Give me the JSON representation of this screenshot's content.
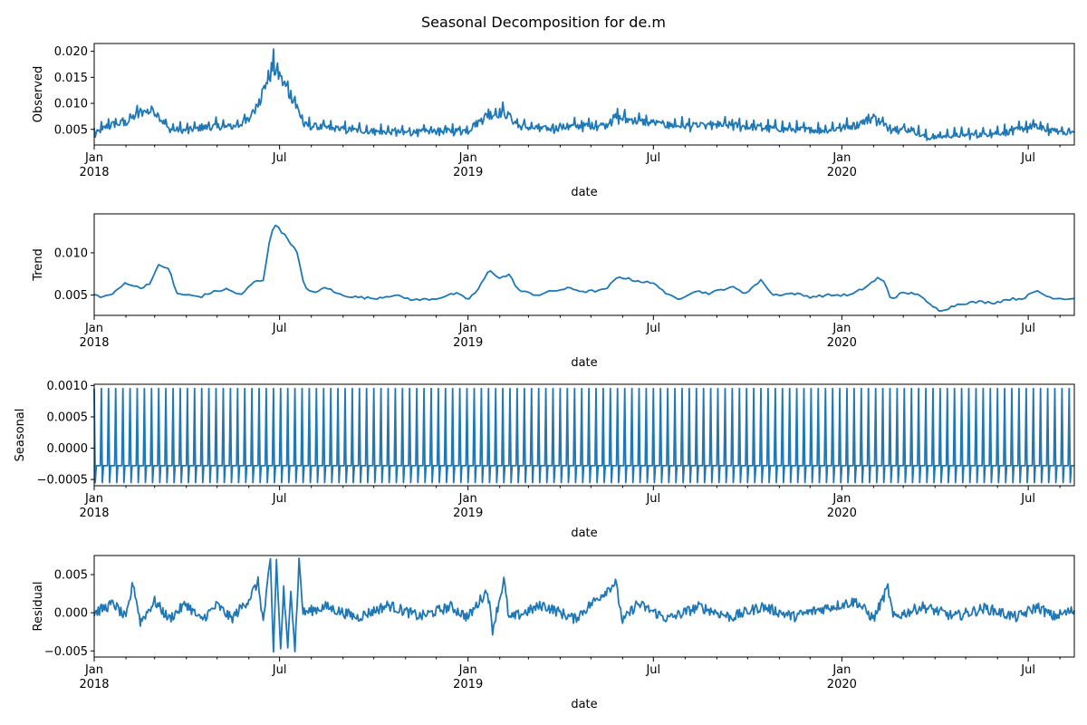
{
  "chart_data": {
    "type": "line",
    "title": "Seasonal Decomposition for de.m",
    "x_range": [
      "2018-01-01",
      "2020-08-15"
    ],
    "x_ticks": [
      {
        "date": "2018-01-01",
        "label": "Jan",
        "label2": "2018"
      },
      {
        "date": "2018-07-01",
        "label": "Jul",
        "label2": ""
      },
      {
        "date": "2019-01-01",
        "label": "Jan",
        "label2": "2019"
      },
      {
        "date": "2019-07-01",
        "label": "Jul",
        "label2": ""
      },
      {
        "date": "2020-01-01",
        "label": "Jan",
        "label2": "2020"
      },
      {
        "date": "2020-07-01",
        "label": "Jul",
        "label2": ""
      }
    ],
    "xlabel": "date",
    "grid": false,
    "panels": [
      {
        "name": "observed",
        "ylabel": "Observed",
        "ylim": [
          0.002,
          0.0215
        ],
        "y_ticks": [
          0.005,
          0.01,
          0.015,
          0.02
        ],
        "y_tick_labels": [
          "0.005",
          "0.010",
          "0.015",
          "0.020"
        ],
        "points": [
          [
            "2018-01-01",
            0.0042
          ],
          [
            "2018-01-15",
            0.006
          ],
          [
            "2018-02-01",
            0.0065
          ],
          [
            "2018-02-15",
            0.0085
          ],
          [
            "2018-03-01",
            0.0088
          ],
          [
            "2018-03-15",
            0.0052
          ],
          [
            "2018-04-01",
            0.005
          ],
          [
            "2018-04-15",
            0.0055
          ],
          [
            "2018-05-01",
            0.0058
          ],
          [
            "2018-05-15",
            0.0056
          ],
          [
            "2018-06-01",
            0.007
          ],
          [
            "2018-06-15",
            0.0125
          ],
          [
            "2018-06-25",
            0.0175
          ],
          [
            "2018-07-05",
            0.014
          ],
          [
            "2018-07-15",
            0.011
          ],
          [
            "2018-07-25",
            0.006
          ],
          [
            "2018-08-15",
            0.0055
          ],
          [
            "2018-09-01",
            0.0052
          ],
          [
            "2018-10-01",
            0.0048
          ],
          [
            "2018-11-01",
            0.0046
          ],
          [
            "2018-12-01",
            0.0048
          ],
          [
            "2019-01-01",
            0.005
          ],
          [
            "2019-01-20",
            0.008
          ],
          [
            "2019-02-05",
            0.0085
          ],
          [
            "2019-02-20",
            0.0058
          ],
          [
            "2019-03-15",
            0.0052
          ],
          [
            "2019-04-15",
            0.0058
          ],
          [
            "2019-05-15",
            0.006
          ],
          [
            "2019-05-25",
            0.0075
          ],
          [
            "2019-06-15",
            0.0068
          ],
          [
            "2019-07-15",
            0.006
          ],
          [
            "2019-08-15",
            0.0058
          ],
          [
            "2019-09-15",
            0.006
          ],
          [
            "2019-10-15",
            0.0055
          ],
          [
            "2019-11-15",
            0.0052
          ],
          [
            "2019-12-15",
            0.005
          ],
          [
            "2020-01-15",
            0.006
          ],
          [
            "2020-02-01",
            0.0075
          ],
          [
            "2020-02-15",
            0.0055
          ],
          [
            "2020-03-10",
            0.005
          ],
          [
            "2020-03-25",
            0.0035
          ],
          [
            "2020-04-15",
            0.004
          ],
          [
            "2020-05-15",
            0.0042
          ],
          [
            "2020-06-15",
            0.0048
          ],
          [
            "2020-07-05",
            0.0058
          ],
          [
            "2020-07-25",
            0.0048
          ],
          [
            "2020-08-15",
            0.0046
          ]
        ]
      },
      {
        "name": "trend",
        "ylabel": "Trend",
        "ylim": [
          0.0026,
          0.0146
        ],
        "y_ticks": [
          0.005,
          0.01
        ],
        "y_tick_labels": [
          "0.005",
          "0.010"
        ],
        "points": [
          [
            "2018-01-01",
            0.005
          ],
          [
            "2018-01-10",
            0.0048
          ],
          [
            "2018-01-20",
            0.0052
          ],
          [
            "2018-02-01",
            0.0065
          ],
          [
            "2018-02-15",
            0.0058
          ],
          [
            "2018-02-25",
            0.0065
          ],
          [
            "2018-03-05",
            0.0085
          ],
          [
            "2018-03-15",
            0.0082
          ],
          [
            "2018-03-22",
            0.0052
          ],
          [
            "2018-04-01",
            0.005
          ],
          [
            "2018-04-15",
            0.0048
          ],
          [
            "2018-04-25",
            0.0053
          ],
          [
            "2018-05-10",
            0.0057
          ],
          [
            "2018-05-25",
            0.005
          ],
          [
            "2018-06-05",
            0.0065
          ],
          [
            "2018-06-15",
            0.0068
          ],
          [
            "2018-06-22",
            0.012
          ],
          [
            "2018-06-28",
            0.0135
          ],
          [
            "2018-07-03",
            0.0125
          ],
          [
            "2018-07-10",
            0.0115
          ],
          [
            "2018-07-18",
            0.01
          ],
          [
            "2018-07-25",
            0.006
          ],
          [
            "2018-08-05",
            0.0052
          ],
          [
            "2018-08-15",
            0.006
          ],
          [
            "2018-08-25",
            0.0052
          ],
          [
            "2018-09-10",
            0.0048
          ],
          [
            "2018-10-01",
            0.0046
          ],
          [
            "2018-10-20",
            0.005
          ],
          [
            "2018-11-10",
            0.0044
          ],
          [
            "2018-12-01",
            0.0046
          ],
          [
            "2018-12-20",
            0.0052
          ],
          [
            "2019-01-01",
            0.0045
          ],
          [
            "2019-01-10",
            0.0055
          ],
          [
            "2019-01-22",
            0.008
          ],
          [
            "2019-02-01",
            0.007
          ],
          [
            "2019-02-10",
            0.0074
          ],
          [
            "2019-02-20",
            0.0055
          ],
          [
            "2019-03-10",
            0.005
          ],
          [
            "2019-03-25",
            0.0055
          ],
          [
            "2019-04-10",
            0.0058
          ],
          [
            "2019-04-25",
            0.0054
          ],
          [
            "2019-05-15",
            0.0056
          ],
          [
            "2019-05-28",
            0.0072
          ],
          [
            "2019-06-10",
            0.0068
          ],
          [
            "2019-06-25",
            0.0065
          ],
          [
            "2019-07-05",
            0.0062
          ],
          [
            "2019-07-15",
            0.005
          ],
          [
            "2019-07-25",
            0.0045
          ],
          [
            "2019-08-10",
            0.0055
          ],
          [
            "2019-08-25",
            0.0052
          ],
          [
            "2019-09-15",
            0.006
          ],
          [
            "2019-09-28",
            0.0052
          ],
          [
            "2019-10-15",
            0.0068
          ],
          [
            "2019-10-25",
            0.005
          ],
          [
            "2019-11-15",
            0.0052
          ],
          [
            "2019-12-01",
            0.0048
          ],
          [
            "2019-12-20",
            0.005
          ],
          [
            "2020-01-10",
            0.005
          ],
          [
            "2020-01-25",
            0.006
          ],
          [
            "2020-02-05",
            0.007
          ],
          [
            "2020-02-12",
            0.0065
          ],
          [
            "2020-02-18",
            0.0045
          ],
          [
            "2020-02-28",
            0.0052
          ],
          [
            "2020-03-15",
            0.0052
          ],
          [
            "2020-03-25",
            0.004
          ],
          [
            "2020-04-05",
            0.0032
          ],
          [
            "2020-04-15",
            0.0035
          ],
          [
            "2020-04-25",
            0.004
          ],
          [
            "2020-05-15",
            0.0042
          ],
          [
            "2020-05-30",
            0.0041
          ],
          [
            "2020-06-10",
            0.0045
          ],
          [
            "2020-06-25",
            0.0046
          ],
          [
            "2020-07-10",
            0.0055
          ],
          [
            "2020-07-20",
            0.0048
          ],
          [
            "2020-08-01",
            0.0046
          ],
          [
            "2020-08-15",
            0.0046
          ]
        ]
      },
      {
        "name": "seasonal",
        "ylabel": "Seasonal",
        "ylim": [
          -0.0006,
          0.00102
        ],
        "y_ticks": [
          -0.0005,
          0.0,
          0.0005,
          0.001
        ],
        "y_tick_labels": [
          "−0.0005",
          "0.0000",
          "0.0005",
          "0.0010"
        ],
        "period_days": 7,
        "weekly_pattern": [
          0.00095,
          -0.00055,
          -0.00028,
          -0.00028,
          -0.00028,
          -0.00028,
          -0.00028
        ],
        "points": []
      },
      {
        "name": "residual",
        "ylabel": "Residual",
        "ylim": [
          -0.0058,
          0.0075
        ],
        "y_ticks": [
          -0.005,
          0.0,
          0.005
        ],
        "y_tick_labels": [
          "−0.005",
          "0.000",
          "0.005"
        ],
        "points": [
          [
            "2018-01-01",
            0.0
          ],
          [
            "2018-01-20",
            0.0012
          ],
          [
            "2018-02-01",
            -0.0008
          ],
          [
            "2018-02-08",
            0.004
          ],
          [
            "2018-02-15",
            -0.0012
          ],
          [
            "2018-03-01",
            0.0015
          ],
          [
            "2018-03-15",
            -0.0008
          ],
          [
            "2018-04-01",
            0.0012
          ],
          [
            "2018-04-15",
            -0.001
          ],
          [
            "2018-05-01",
            0.001
          ],
          [
            "2018-05-15",
            -0.0008
          ],
          [
            "2018-06-01",
            0.0018
          ],
          [
            "2018-06-10",
            0.004
          ],
          [
            "2018-06-15",
            -0.0012
          ],
          [
            "2018-06-22",
            0.0068
          ],
          [
            "2018-06-25",
            -0.005
          ],
          [
            "2018-06-28",
            0.0068
          ],
          [
            "2018-07-02",
            -0.0048
          ],
          [
            "2018-07-05",
            0.003
          ],
          [
            "2018-07-09",
            -0.005
          ],
          [
            "2018-07-12",
            0.0035
          ],
          [
            "2018-07-16",
            -0.0048
          ],
          [
            "2018-07-20",
            0.0068
          ],
          [
            "2018-07-24",
            0.0
          ],
          [
            "2018-08-15",
            0.0008
          ],
          [
            "2018-09-15",
            -0.0006
          ],
          [
            "2018-10-15",
            0.001
          ],
          [
            "2018-11-15",
            -0.0005
          ],
          [
            "2018-12-15",
            0.0008
          ],
          [
            "2019-01-01",
            -0.0006
          ],
          [
            "2019-01-20",
            0.003
          ],
          [
            "2019-01-25",
            -0.0022
          ],
          [
            "2019-02-05",
            0.0043
          ],
          [
            "2019-02-10",
            -0.0008
          ],
          [
            "2019-03-15",
            0.001
          ],
          [
            "2019-04-15",
            -0.0008
          ],
          [
            "2019-05-25",
            0.004
          ],
          [
            "2019-06-01",
            -0.0012
          ],
          [
            "2019-06-15",
            0.0012
          ],
          [
            "2019-07-15",
            -0.0008
          ],
          [
            "2019-08-15",
            0.0008
          ],
          [
            "2019-09-15",
            -0.0006
          ],
          [
            "2019-10-15",
            0.0008
          ],
          [
            "2019-11-15",
            -0.0005
          ],
          [
            "2019-12-15",
            0.0006
          ],
          [
            "2020-01-15",
            0.0015
          ],
          [
            "2020-02-01",
            -0.0008
          ],
          [
            "2020-02-15",
            0.0033
          ],
          [
            "2020-02-20",
            -0.0006
          ],
          [
            "2020-03-20",
            0.0008
          ],
          [
            "2020-04-20",
            -0.0005
          ],
          [
            "2020-05-20",
            0.0006
          ],
          [
            "2020-06-20",
            -0.0006
          ],
          [
            "2020-07-10",
            0.0008
          ],
          [
            "2020-07-25",
            -0.0005
          ],
          [
            "2020-08-15",
            0.0003
          ]
        ]
      }
    ]
  }
}
